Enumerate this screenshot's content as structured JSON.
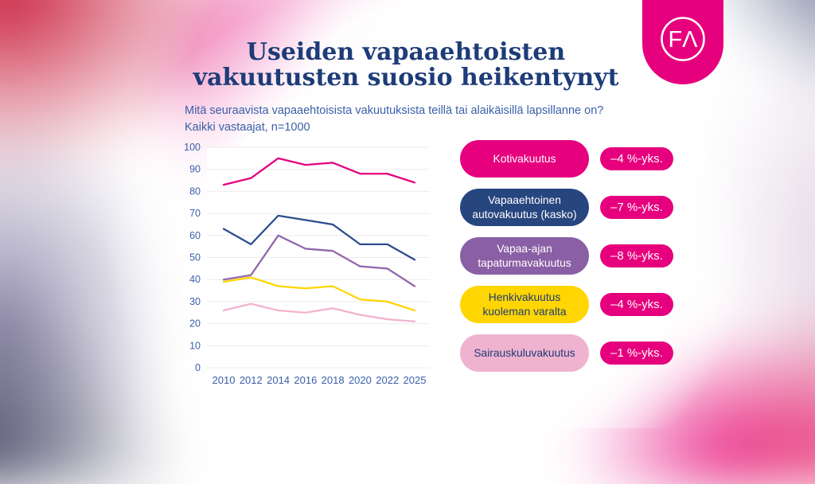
{
  "header": {
    "title_line1": "Useiden vapaaehtoisten",
    "title_line2": "vakuutusten suosio heikentynyt",
    "subtitle_line1": "Mitä seuraavista vapaaehtoisista vakuutuksista teillä tai alaikäisillä lapsillanne on?",
    "subtitle_line2": "Kaikki vastaajat, n=1000"
  },
  "logo": {
    "text": "FΛ",
    "background": "#e6007e"
  },
  "colors": {
    "title": "#1d3c78",
    "axis_text": "#3a5fa9",
    "gridline": "#ebebeb",
    "badge": "#e6007e"
  },
  "chart_data": {
    "type": "line",
    "x": [
      "2010",
      "2012",
      "2014",
      "2016",
      "2018",
      "2020",
      "2022",
      "2025"
    ],
    "series": [
      {
        "name": "Kotivakuutus",
        "color": "#e6007e",
        "values": [
          83,
          86,
          95,
          92,
          93,
          88,
          88,
          84
        ]
      },
      {
        "name": "Vapaaehtoinen autovakuutus (kasko)",
        "color": "#2d4d8e",
        "values": [
          63,
          56,
          69,
          67,
          65,
          56,
          56,
          49
        ]
      },
      {
        "name": "Vapaa-ajan tapaturmavakuutus",
        "color": "#9168ac",
        "values": [
          40,
          42,
          60,
          54,
          53,
          46,
          45,
          37
        ]
      },
      {
        "name": "Henkivakuutus kuoleman varalta",
        "color": "#ffd502",
        "values": [
          39,
          41,
          37,
          36,
          37,
          31,
          30,
          26
        ]
      },
      {
        "name": "Sairauskuluvakuutus",
        "color": "#f2b3d0",
        "values": [
          26,
          29,
          26,
          25,
          27,
          24,
          22,
          21
        ]
      }
    ],
    "title": "",
    "xlabel": "",
    "ylabel": "",
    "ylim": [
      0,
      100
    ],
    "ytick_step": 10,
    "grid": "horizontal",
    "legend_position": "right"
  },
  "legend": {
    "items": [
      {
        "label": "Kotivakuutus",
        "pill_color": "#e6007e",
        "text_color": "#ffffff",
        "change": "–4 %-yks."
      },
      {
        "label": "Vapaaehtoinen autovakuutus (kasko)",
        "pill_color": "#27457e",
        "text_color": "#ffffff",
        "change": "–7 %-yks."
      },
      {
        "label": "Vapaa-ajan tapaturmavakuutus",
        "pill_color": "#8a5fa5",
        "text_color": "#ffffff",
        "change": "–8 %-yks."
      },
      {
        "label": "Henkivakuutus kuoleman varalta",
        "pill_color": "#ffd502",
        "text_color": "#1d3c78",
        "change": "–4 %-yks."
      },
      {
        "label": "Sairauskuluvakuutus",
        "pill_color": "#f0b3cf",
        "text_color": "#1d3c78",
        "change": "–1 %-yks."
      }
    ]
  }
}
